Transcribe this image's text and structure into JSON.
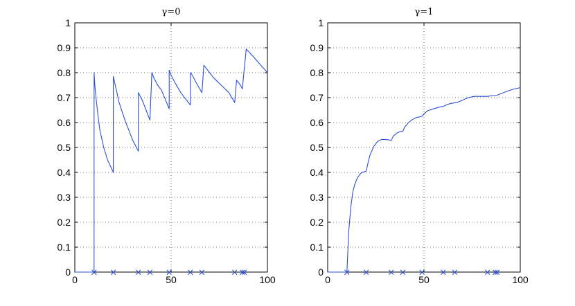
{
  "chart_data": [
    {
      "type": "line",
      "title": "γ=0",
      "xlim": [
        0,
        100
      ],
      "ylim": [
        0,
        1
      ],
      "xticks": [
        0,
        50,
        100
      ],
      "yticks": [
        0,
        0.1,
        0.2,
        0.3,
        0.4,
        0.5,
        0.6,
        0.7,
        0.8,
        0.9,
        1
      ],
      "grid": true,
      "line_color": "#2b4fd9",
      "marker_symbol": "×",
      "series": [
        {
          "x": [
            0,
            10,
            10,
            10.5,
            11,
            12,
            13,
            15,
            17,
            20,
            20,
            21,
            23,
            26,
            30,
            33,
            33,
            35,
            37,
            39,
            39,
            40,
            41,
            43,
            45,
            49,
            49,
            50,
            52,
            55,
            60,
            60,
            61,
            63,
            66,
            66,
            67,
            69,
            72,
            76,
            80,
            83,
            83,
            84,
            86,
            87,
            87,
            88,
            88,
            89,
            92,
            96,
            100
          ],
          "y": [
            0,
            0,
            0.8,
            0.74,
            0.7,
            0.63,
            0.57,
            0.5,
            0.45,
            0.4,
            0.785,
            0.75,
            0.68,
            0.61,
            0.53,
            0.485,
            0.72,
            0.69,
            0.65,
            0.61,
            0.61,
            0.8,
            0.78,
            0.75,
            0.73,
            0.655,
            0.81,
            0.79,
            0.76,
            0.72,
            0.67,
            0.8,
            0.79,
            0.76,
            0.72,
            0.72,
            0.83,
            0.81,
            0.78,
            0.75,
            0.72,
            0.68,
            0.68,
            0.77,
            0.75,
            0.735,
            0.735,
            0.82,
            0.815,
            0.895,
            0.87,
            0.835,
            0.8
          ]
        }
      ],
      "event_markers_x": [
        10,
        20,
        33,
        39,
        49,
        60,
        66,
        83,
        87,
        88
      ]
    },
    {
      "type": "line",
      "title": "γ=1",
      "xlim": [
        0,
        100
      ],
      "ylim": [
        0,
        1
      ],
      "xticks": [
        0,
        50,
        100
      ],
      "yticks": [
        0,
        0.1,
        0.2,
        0.3,
        0.4,
        0.5,
        0.6,
        0.7,
        0.8,
        0.9,
        1
      ],
      "grid": true,
      "line_color": "#2b4fd9",
      "marker_symbol": "×",
      "series": [
        {
          "x": [
            0,
            10,
            10.5,
            11,
            12,
            13,
            14,
            15,
            16,
            17,
            18,
            20,
            21,
            22,
            24,
            26,
            28,
            30,
            32,
            33,
            34,
            36,
            38,
            39,
            40,
            42,
            44,
            46,
            49,
            50,
            52,
            55,
            58,
            60,
            62,
            64,
            66,
            67,
            70,
            73,
            76,
            80,
            83,
            84,
            86,
            87,
            88,
            90,
            93,
            96,
            100
          ],
          "y": [
            0,
            0,
            0.09,
            0.17,
            0.26,
            0.32,
            0.35,
            0.37,
            0.385,
            0.395,
            0.4,
            0.405,
            0.44,
            0.47,
            0.505,
            0.525,
            0.532,
            0.532,
            0.53,
            0.528,
            0.545,
            0.558,
            0.565,
            0.565,
            0.582,
            0.6,
            0.612,
            0.62,
            0.625,
            0.635,
            0.648,
            0.655,
            0.662,
            0.665,
            0.672,
            0.677,
            0.679,
            0.68,
            0.69,
            0.7,
            0.705,
            0.705,
            0.705,
            0.706,
            0.708,
            0.708,
            0.71,
            0.716,
            0.725,
            0.733,
            0.74
          ]
        }
      ],
      "event_markers_x": [
        10,
        20,
        33,
        39,
        49,
        60,
        66,
        83,
        87,
        88
      ]
    }
  ]
}
